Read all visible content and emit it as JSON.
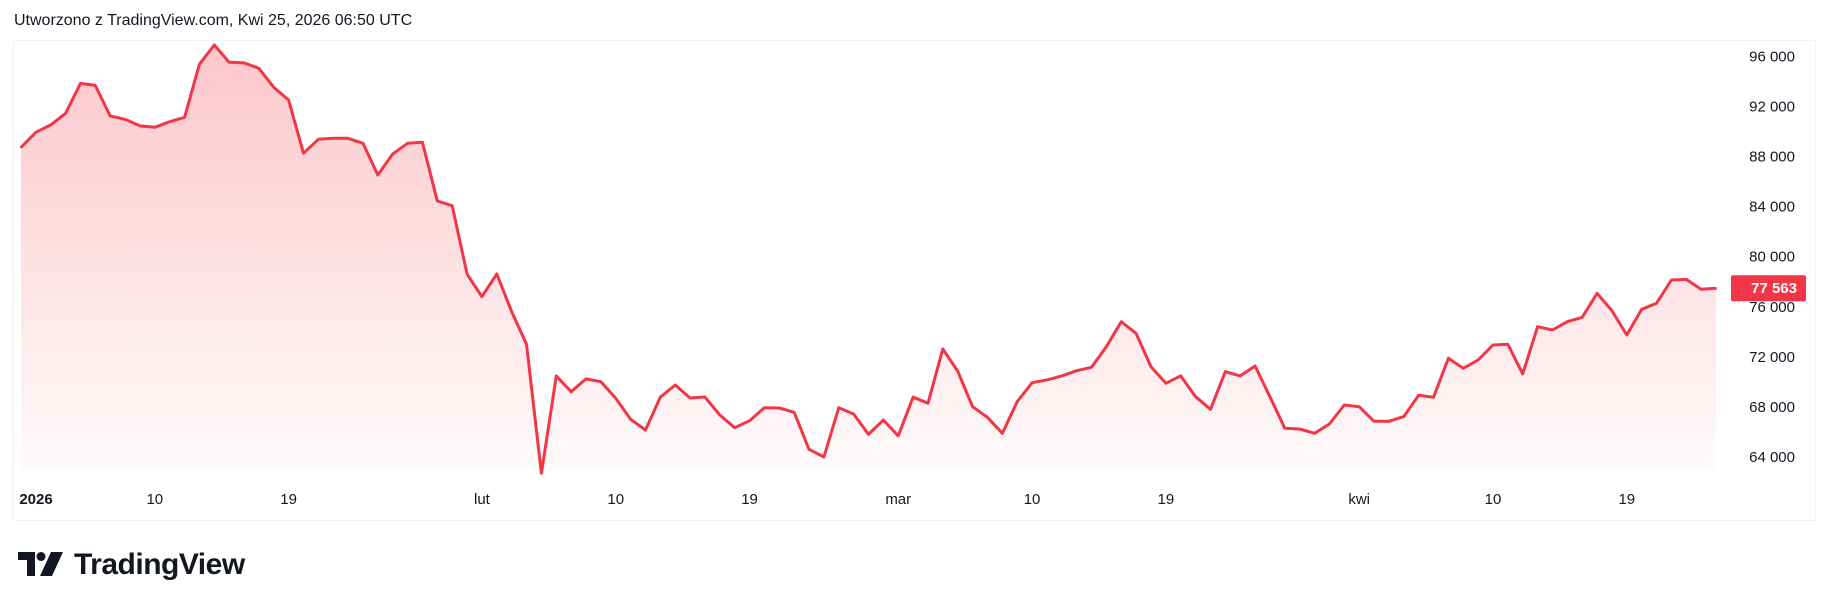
{
  "header": {
    "title": "Utworzono z TradingView.com, Kwi 25, 2026 06:50 UTC"
  },
  "branding": {
    "logo_text": "TradingView"
  },
  "colors": {
    "line": "#f23645",
    "price_label_bg": "#f23645",
    "price_label_text": "#ffffff",
    "text": "#131722",
    "frame": "#f0f3fa"
  },
  "chart_data": {
    "type": "area",
    "title": "",
    "xlabel": "",
    "ylabel": "",
    "ylim": [
      62000,
      97500
    ],
    "grid": false,
    "y_axis_position": "right",
    "y_ticks": [
      "96 000",
      "92 000",
      "88 000",
      "84 000",
      "80 000",
      "76 000",
      "72 000",
      "68 000",
      "64 000"
    ],
    "y_tick_values": [
      96000,
      92000,
      88000,
      84000,
      80000,
      76000,
      72000,
      68000,
      64000
    ],
    "x_ticks": [
      {
        "label": "2026",
        "date": "2026-01-01",
        "bold": true
      },
      {
        "label": "10",
        "date": "2026-01-10"
      },
      {
        "label": "19",
        "date": "2026-01-19"
      },
      {
        "label": "lut",
        "date": "2026-02-01"
      },
      {
        "label": "10",
        "date": "2026-02-10"
      },
      {
        "label": "19",
        "date": "2026-02-19"
      },
      {
        "label": "mar",
        "date": "2026-03-01"
      },
      {
        "label": "10",
        "date": "2026-03-10"
      },
      {
        "label": "19",
        "date": "2026-03-19"
      },
      {
        "label": "kwi",
        "date": "2026-04-01"
      },
      {
        "label": "10",
        "date": "2026-04-10"
      },
      {
        "label": "19",
        "date": "2026-04-19"
      }
    ],
    "last_price_label": "77 563",
    "last_price": 77563,
    "dates": [
      "2026-01-01",
      "2026-01-02",
      "2026-01-03",
      "2026-01-04",
      "2026-01-05",
      "2026-01-06",
      "2026-01-07",
      "2026-01-08",
      "2026-01-09",
      "2026-01-10",
      "2026-01-11",
      "2026-01-12",
      "2026-01-13",
      "2026-01-14",
      "2026-01-15",
      "2026-01-16",
      "2026-01-17",
      "2026-01-18",
      "2026-01-19",
      "2026-01-20",
      "2026-01-21",
      "2026-01-22",
      "2026-01-23",
      "2026-01-24",
      "2026-01-25",
      "2026-01-26",
      "2026-01-27",
      "2026-01-28",
      "2026-01-29",
      "2026-01-30",
      "2026-01-31",
      "2026-02-01",
      "2026-02-02",
      "2026-02-03",
      "2026-02-04",
      "2026-02-05",
      "2026-02-06",
      "2026-02-07",
      "2026-02-08",
      "2026-02-09",
      "2026-02-10",
      "2026-02-11",
      "2026-02-12",
      "2026-02-13",
      "2026-02-14",
      "2026-02-15",
      "2026-02-16",
      "2026-02-17",
      "2026-02-18",
      "2026-02-19",
      "2026-02-20",
      "2026-02-21",
      "2026-02-22",
      "2026-02-23",
      "2026-02-24",
      "2026-02-25",
      "2026-02-26",
      "2026-02-27",
      "2026-02-28",
      "2026-03-01",
      "2026-03-02",
      "2026-03-03",
      "2026-03-04",
      "2026-03-05",
      "2026-03-06",
      "2026-03-07",
      "2026-03-08",
      "2026-03-09",
      "2026-03-10",
      "2026-03-11",
      "2026-03-12",
      "2026-03-13",
      "2026-03-14",
      "2026-03-15",
      "2026-03-16",
      "2026-03-17",
      "2026-03-18",
      "2026-03-19",
      "2026-03-20",
      "2026-03-21",
      "2026-03-22",
      "2026-03-23",
      "2026-03-24",
      "2026-03-25",
      "2026-03-26",
      "2026-03-27",
      "2026-03-28",
      "2026-03-29",
      "2026-03-30",
      "2026-03-31",
      "2026-04-01",
      "2026-04-02",
      "2026-04-03",
      "2026-04-04",
      "2026-04-05",
      "2026-04-06",
      "2026-04-07",
      "2026-04-08",
      "2026-04-09",
      "2026-04-10",
      "2026-04-11",
      "2026-04-12",
      "2026-04-13",
      "2026-04-14",
      "2026-04-15",
      "2026-04-16",
      "2026-04-17",
      "2026-04-18",
      "2026-04-19",
      "2026-04-20",
      "2026-04-21",
      "2026-04-22",
      "2026-04-23",
      "2026-04-24",
      "2026-04-25"
    ],
    "values": [
      88810,
      90010,
      90600,
      91530,
      93920,
      93760,
      91310,
      91050,
      90520,
      90410,
      90860,
      91210,
      95440,
      96980,
      95600,
      95550,
      95120,
      93600,
      92590,
      88340,
      89450,
      89530,
      89530,
      89130,
      86600,
      88280,
      89130,
      89210,
      84530,
      84150,
      78680,
      76890,
      78700,
      75690,
      73090,
      62790,
      70560,
      69300,
      70320,
      70100,
      68780,
      67100,
      66240,
      68860,
      69840,
      68800,
      68880,
      67440,
      66430,
      66990,
      68020,
      68000,
      67660,
      64700,
      64090,
      68020,
      67520,
      65900,
      67040,
      65770,
      68860,
      68380,
      72710,
      70950,
      68100,
      67260,
      65980,
      68500,
      70020,
      70240,
      70560,
      70980,
      71250,
      72900,
      74890,
      73960,
      71300,
      69970,
      70560,
      68900,
      67900,
      70900,
      70560,
      71350,
      68900,
      66380,
      66320,
      65980,
      66720,
      68240,
      68100,
      66940,
      66940,
      67310,
      69010,
      68860,
      71970,
      71170,
      71830,
      73030,
      73090,
      70720,
      74490,
      74230,
      74890,
      75240,
      77160,
      75770,
      73830,
      75880,
      76360,
      78220,
      78270,
      77480,
      77563
    ]
  }
}
